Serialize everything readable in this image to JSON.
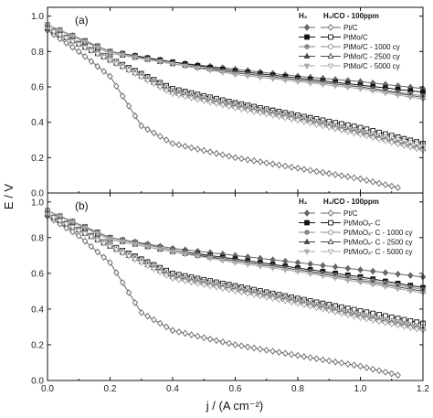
{
  "chart_data": {
    "type": "line",
    "ylabel": "E / V",
    "xlabel": "j / (A cm⁻²)",
    "xlim": [
      0,
      1.2
    ],
    "ylim": [
      0,
      1.05
    ],
    "xticks": [
      "0.0",
      "0.2",
      "0.4",
      "0.6",
      "0.8",
      "1.0",
      "1.2"
    ],
    "yticks": [
      "0.0",
      "0.2",
      "0.4",
      "0.6",
      "0.8",
      "1.0"
    ],
    "panels": [
      {
        "label": "(a)",
        "legend": {
          "header_left": "H₂",
          "header_right": "H₂/CO - 100ppm",
          "placement": "top-right",
          "entries": [
            "Pt/C",
            "PtMo/C",
            "PtMo/C - 1000 cy",
            "PtMo/C - 2500 cy",
            "PtMo/C - 5000 cy"
          ]
        },
        "series": [
          {
            "name": "Pt/C",
            "condition": "H2",
            "marker": "diamond",
            "filled": true,
            "color": "#666666",
            "x": [
              0,
              0.2,
              0.4,
              0.6,
              0.8,
              1.0,
              1.2
            ],
            "y": [
              0.95,
              0.8,
              0.74,
              0.7,
              0.66,
              0.63,
              0.59
            ]
          },
          {
            "name": "PtMo/C",
            "condition": "H2",
            "marker": "square",
            "filled": true,
            "color": "#111111",
            "x": [
              0,
              0.2,
              0.4,
              0.6,
              0.8,
              1.0,
              1.2
            ],
            "y": [
              0.95,
              0.8,
              0.74,
              0.69,
              0.65,
              0.61,
              0.57
            ]
          },
          {
            "name": "PtMo/C - 1000 cy",
            "condition": "H2",
            "marker": "circle",
            "filled": true,
            "color": "#888888",
            "x": [
              0,
              0.2,
              0.4,
              0.6,
              0.8,
              1.0,
              1.2
            ],
            "y": [
              0.95,
              0.8,
              0.73,
              0.68,
              0.64,
              0.6,
              0.55
            ]
          },
          {
            "name": "PtMo/C - 2500 cy",
            "condition": "H2",
            "marker": "triangle-up",
            "filled": true,
            "color": "#444444",
            "x": [
              0,
              0.2,
              0.4,
              0.6,
              0.8,
              1.0,
              1.2
            ],
            "y": [
              0.95,
              0.79,
              0.73,
              0.68,
              0.64,
              0.6,
              0.54
            ]
          },
          {
            "name": "PtMo/C - 5000 cy",
            "condition": "H2",
            "marker": "triangle-down",
            "filled": true,
            "color": "#aaaaaa",
            "x": [
              0,
              0.2,
              0.4,
              0.6,
              0.8,
              1.0,
              1.2
            ],
            "y": [
              0.95,
              0.79,
              0.73,
              0.67,
              0.63,
              0.59,
              0.53
            ]
          },
          {
            "name": "Pt/C",
            "condition": "H2/CO - 100ppm",
            "marker": "diamond",
            "filled": false,
            "color": "#666666",
            "x": [
              0,
              0.1,
              0.2,
              0.3,
              0.4,
              0.6,
              0.8,
              1.0,
              1.12
            ],
            "y": [
              0.92,
              0.8,
              0.66,
              0.38,
              0.28,
              0.2,
              0.14,
              0.08,
              0.03
            ]
          },
          {
            "name": "PtMo/C",
            "condition": "H2/CO - 100ppm",
            "marker": "square",
            "filled": false,
            "color": "#111111",
            "x": [
              0,
              0.2,
              0.4,
              0.6,
              0.8,
              1.0,
              1.2
            ],
            "y": [
              0.93,
              0.76,
              0.59,
              0.51,
              0.44,
              0.37,
              0.28
            ]
          },
          {
            "name": "PtMo/C - 1000 cy",
            "condition": "H2/CO - 100ppm",
            "marker": "circle",
            "filled": false,
            "color": "#888888",
            "x": [
              0,
              0.2,
              0.4,
              0.6,
              0.8,
              1.0,
              1.2
            ],
            "y": [
              0.93,
              0.76,
              0.58,
              0.5,
              0.43,
              0.35,
              0.27
            ]
          },
          {
            "name": "PtMo/C - 2500 cy",
            "condition": "H2/CO - 100ppm",
            "marker": "triangle-up",
            "filled": false,
            "color": "#444444",
            "x": [
              0,
              0.2,
              0.4,
              0.6,
              0.8,
              1.0,
              1.2
            ],
            "y": [
              0.93,
              0.75,
              0.57,
              0.49,
              0.42,
              0.34,
              0.25
            ]
          },
          {
            "name": "PtMo/C - 5000 cy",
            "condition": "H2/CO - 100ppm",
            "marker": "triangle-down",
            "filled": false,
            "color": "#aaaaaa",
            "x": [
              0,
              0.2,
              0.4,
              0.6,
              0.8,
              1.0,
              1.2
            ],
            "y": [
              0.93,
              0.75,
              0.56,
              0.48,
              0.41,
              0.33,
              0.24
            ]
          }
        ]
      },
      {
        "label": "(b)",
        "legend": {
          "header_left": "H₂",
          "header_right": "H₂/CO - 100ppm",
          "placement": "top-right",
          "entries": [
            "Pt/C",
            "Pt/MoOₓ- C",
            "Pt/MoOₓ- C - 1000 cy",
            "Pt/MoOₓ- C - 2500 cy",
            "Pt/MoOₓ- C - 5000 cy"
          ]
        },
        "series": [
          {
            "name": "Pt/C",
            "condition": "H2",
            "marker": "diamond",
            "filled": true,
            "color": "#666666",
            "x": [
              0,
              0.2,
              0.4,
              0.6,
              0.8,
              1.0,
              1.2
            ],
            "y": [
              0.95,
              0.8,
              0.74,
              0.7,
              0.66,
              0.62,
              0.58
            ]
          },
          {
            "name": "Pt/MoOₓ- C",
            "condition": "H2",
            "marker": "square",
            "filled": true,
            "color": "#111111",
            "x": [
              0,
              0.2,
              0.4,
              0.6,
              0.8,
              1.0,
              1.2
            ],
            "y": [
              0.95,
              0.8,
              0.73,
              0.68,
              0.63,
              0.58,
              0.52
            ]
          },
          {
            "name": "Pt/MoOₓ- C - 1000 cy",
            "condition": "H2",
            "marker": "circle",
            "filled": true,
            "color": "#888888",
            "x": [
              0,
              0.2,
              0.4,
              0.6,
              0.8,
              1.0,
              1.2
            ],
            "y": [
              0.95,
              0.8,
              0.73,
              0.67,
              0.62,
              0.57,
              0.51
            ]
          },
          {
            "name": "Pt/MoOₓ- C - 2500 cy",
            "condition": "H2",
            "marker": "triangle-up",
            "filled": true,
            "color": "#444444",
            "x": [
              0,
              0.2,
              0.4,
              0.6,
              0.8,
              1.0,
              1.2
            ],
            "y": [
              0.95,
              0.79,
              0.72,
              0.67,
              0.62,
              0.56,
              0.5
            ]
          },
          {
            "name": "Pt/MoOₓ- C - 5000 cy",
            "condition": "H2",
            "marker": "triangle-down",
            "filled": true,
            "color": "#aaaaaa",
            "x": [
              0,
              0.2,
              0.4,
              0.6,
              0.8,
              1.0,
              1.2
            ],
            "y": [
              0.95,
              0.79,
              0.72,
              0.66,
              0.61,
              0.55,
              0.49
            ]
          },
          {
            "name": "Pt/C",
            "condition": "H2/CO - 100ppm",
            "marker": "diamond",
            "filled": false,
            "color": "#666666",
            "x": [
              0,
              0.1,
              0.2,
              0.3,
              0.4,
              0.6,
              0.8,
              1.0,
              1.12
            ],
            "y": [
              0.92,
              0.81,
              0.66,
              0.38,
              0.28,
              0.2,
              0.14,
              0.08,
              0.03
            ]
          },
          {
            "name": "Pt/MoOₓ- C",
            "condition": "H2/CO - 100ppm",
            "marker": "square",
            "filled": false,
            "color": "#111111",
            "x": [
              0,
              0.2,
              0.4,
              0.6,
              0.8,
              1.0,
              1.2
            ],
            "y": [
              0.93,
              0.76,
              0.6,
              0.53,
              0.46,
              0.39,
              0.32
            ]
          },
          {
            "name": "Pt/MoOₓ- C - 1000 cy",
            "condition": "H2/CO - 100ppm",
            "marker": "circle",
            "filled": false,
            "color": "#888888",
            "x": [
              0,
              0.2,
              0.4,
              0.6,
              0.8,
              1.0,
              1.2
            ],
            "y": [
              0.93,
              0.76,
              0.59,
              0.52,
              0.45,
              0.37,
              0.3
            ]
          },
          {
            "name": "Pt/MoOₓ- C - 2500 cy",
            "condition": "H2/CO - 100ppm",
            "marker": "triangle-up",
            "filled": false,
            "color": "#444444",
            "x": [
              0,
              0.2,
              0.4,
              0.6,
              0.8,
              1.0,
              1.2
            ],
            "y": [
              0.93,
              0.75,
              0.58,
              0.51,
              0.44,
              0.36,
              0.29
            ]
          },
          {
            "name": "Pt/MoOₓ- C - 5000 cy",
            "condition": "H2/CO - 100ppm",
            "marker": "triangle-down",
            "filled": false,
            "color": "#aaaaaa",
            "x": [
              0,
              0.2,
              0.4,
              0.6,
              0.8,
              1.0,
              1.2
            ],
            "y": [
              0.93,
              0.75,
              0.57,
              0.5,
              0.43,
              0.35,
              0.28
            ]
          }
        ]
      }
    ]
  }
}
